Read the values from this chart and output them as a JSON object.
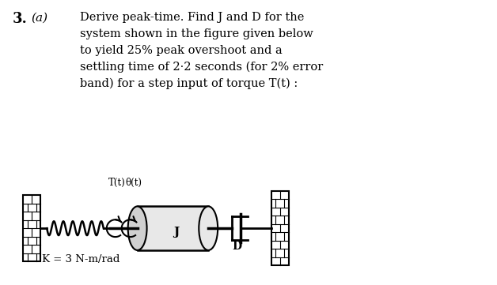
{
  "title_number": "3.",
  "title_part": "(a)",
  "text_lines": [
    "Derive peak-time. Find J and D for the",
    "system shown in the figure given below",
    "to yield 25% peak overshoot and a",
    "settling time of 2·2 seconds (for 2% error",
    "band) for a step input of torque T(t) :"
  ],
  "label_Tt": "T(t)",
  "label_theta": "θ(t)",
  "label_J": "J",
  "label_D": "D",
  "label_K": "K = 3 N-m/rad",
  "bg_color": "#ffffff",
  "text_color": "#000000",
  "diagram_color": "#000000"
}
